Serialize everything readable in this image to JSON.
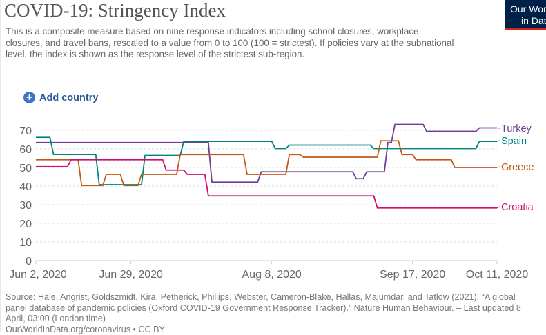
{
  "header": {
    "title": "COVID-19: Stringency Index",
    "subtitle": "This is a composite measure based on nine response indicators including school closures, workplace closures, and travel bans, rescaled to a value from 0 to 100 (100 = strictest). If policies vary at the subnational level, the index is shown as the response level of the strictest sub-region.",
    "logo_line1": "Our World",
    "logo_line2": "in Data"
  },
  "controls": {
    "add_country_label": "Add country",
    "add_icon": "plus-circle-icon"
  },
  "chart_data": {
    "type": "line",
    "title": "",
    "xlabel": "",
    "ylabel": "",
    "xlim": [
      "2020-06-02",
      "2020-10-11"
    ],
    "ylim": [
      0,
      73
    ],
    "grid": true,
    "legend": "right (inline end labels)",
    "y_ticks": [
      "0",
      "10",
      "20",
      "30",
      "40",
      "50",
      "60",
      "70"
    ],
    "y_tick_values": [
      0,
      10,
      20,
      30,
      40,
      50,
      60,
      70
    ],
    "x_ticks": [
      "Jun 2, 2020",
      "Jun 29, 2020",
      "Aug 8, 2020",
      "Sep 17, 2020",
      "Oct 11, 2020"
    ],
    "x_tick_dates": [
      "2020-06-02",
      "2020-06-29",
      "2020-08-08",
      "2020-09-17",
      "2020-10-11"
    ],
    "series": [
      {
        "name": "Turkey",
        "color": "#6d3e91",
        "points": [
          [
            "2020-06-02",
            63.43
          ],
          [
            "2020-07-22",
            42.13
          ],
          [
            "2020-08-05",
            47.69
          ],
          [
            "2020-09-01",
            43.98
          ],
          [
            "2020-09-04",
            47.69
          ],
          [
            "2020-09-09",
            47.69
          ],
          [
            "2020-09-10",
            63.43
          ],
          [
            "2020-09-12",
            73.15
          ],
          [
            "2020-09-21",
            69.44
          ],
          [
            "2020-10-06",
            71.3
          ],
          [
            "2020-10-11",
            71.3
          ]
        ]
      },
      {
        "name": "Spain",
        "color": "#00847e",
        "points": [
          [
            "2020-06-02",
            66.2
          ],
          [
            "2020-06-07",
            57.0
          ],
          [
            "2020-06-20",
            40.74
          ],
          [
            "2020-07-03",
            56.48
          ],
          [
            "2020-07-14",
            64.02
          ],
          [
            "2020-08-09",
            60.19
          ],
          [
            "2020-08-13",
            62.04
          ],
          [
            "2020-09-06",
            60.19
          ],
          [
            "2020-10-06",
            64.02
          ],
          [
            "2020-10-11",
            64.02
          ]
        ]
      },
      {
        "name": "Greece",
        "color": "#c05917",
        "points": [
          [
            "2020-06-02",
            54.17
          ],
          [
            "2020-06-15",
            40.28
          ],
          [
            "2020-06-22",
            46.3
          ],
          [
            "2020-06-27",
            40.28
          ],
          [
            "2020-07-02",
            46.3
          ],
          [
            "2020-07-13",
            56.94
          ],
          [
            "2020-08-01",
            46.3
          ],
          [
            "2020-08-13",
            56.94
          ],
          [
            "2020-08-17",
            55.56
          ],
          [
            "2020-09-08",
            64.35
          ],
          [
            "2020-09-14",
            56.94
          ],
          [
            "2020-09-18",
            54.17
          ],
          [
            "2020-09-29",
            50.0
          ],
          [
            "2020-10-11",
            50.0
          ]
        ]
      },
      {
        "name": "Croatia",
        "color": "#ce0f6e",
        "points": [
          [
            "2020-06-02",
            50.46
          ],
          [
            "2020-06-12",
            54.17
          ],
          [
            "2020-07-09",
            48.61
          ],
          [
            "2020-07-15",
            46.3
          ],
          [
            "2020-07-21",
            34.72
          ],
          [
            "2020-09-07",
            28.24
          ],
          [
            "2020-10-11",
            28.24
          ]
        ]
      }
    ]
  },
  "footer": {
    "source": "Source: Hale, Angrist, Goldszmidt, Kira, Petherick, Phillips, Webster, Cameron-Blake, Hallas, Majumdar, and Tatlow (2021). “A global panel database of pandemic policies (Oxford COVID-19 Government Response Tracker).” Nature Human Behaviour. – Last updated 8 April, 03:00 (London time)",
    "link": "OurWorldInData.org/coronavirus • CC BY"
  }
}
